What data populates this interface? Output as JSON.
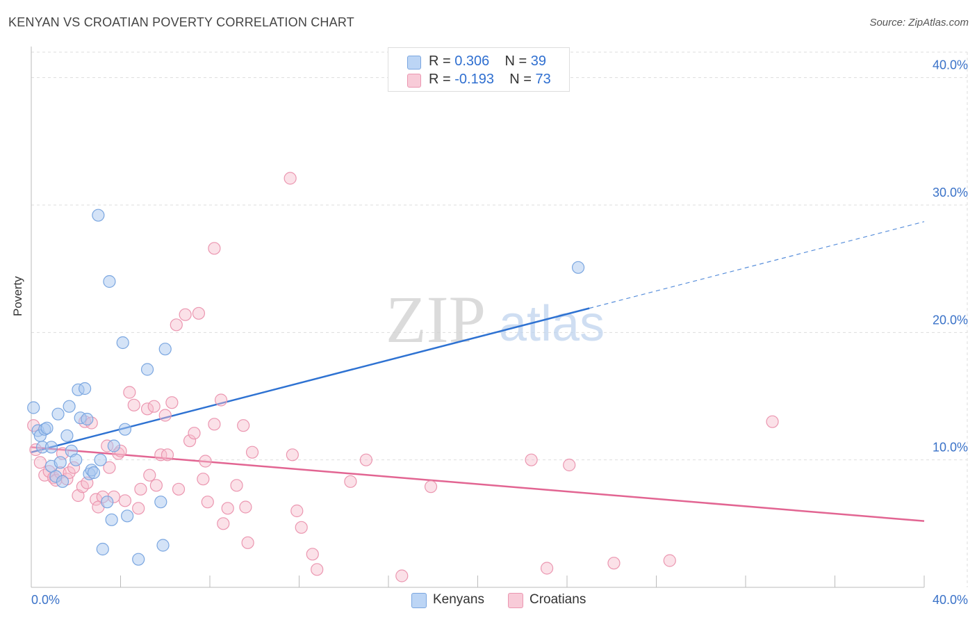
{
  "title": "KENYAN VS CROATIAN POVERTY CORRELATION CHART",
  "source": "Source: ZipAtlas.com",
  "watermark": {
    "zip": "ZIP",
    "atlas": "atlas"
  },
  "colors": {
    "kenyan_fill": "#a9c8f0",
    "kenyan_stroke": "#7aa6e0",
    "kenyan_line": "#2e72d2",
    "croatian_fill": "#f6bccd",
    "croatian_stroke": "#eb96b0",
    "croatian_line": "#e26592",
    "axis_label": "#3a72c8",
    "grid": "#dddddd"
  },
  "legend": {
    "rows": [
      {
        "r_label": "R =",
        "r_value": "0.306",
        "n_label": "N =",
        "n_value": "39"
      },
      {
        "r_label": "R =",
        "r_value": "-0.193",
        "n_label": "N =",
        "n_value": "73"
      }
    ]
  },
  "bottom_legend": [
    {
      "label": "Kenyans"
    },
    {
      "label": "Croatians"
    }
  ],
  "chart_data": {
    "type": "scatter",
    "title": "KENYAN VS CROATIAN POVERTY CORRELATION CHART",
    "xlabel": "",
    "ylabel": "Poverty",
    "xlim": [
      0,
      40
    ],
    "ylim": [
      0,
      42
    ],
    "x_tick_labels": [
      "0.0%",
      "40.0%"
    ],
    "y_ticks": [
      10,
      20,
      30,
      40
    ],
    "y_tick_labels": [
      "10.0%",
      "20.0%",
      "30.0%",
      "40.0%"
    ],
    "series": [
      {
        "name": "Kenyans",
        "r": 0.306,
        "n": 39,
        "trend": {
          "x0": 0,
          "y0": 10.6,
          "x1": 25,
          "y1": 21.9,
          "dash_to_x": 40,
          "dash_to_y": 28.7
        },
        "points": [
          [
            0.1,
            14.1
          ],
          [
            0.3,
            12.3
          ],
          [
            0.4,
            11.9
          ],
          [
            0.5,
            11.0
          ],
          [
            0.6,
            12.4
          ],
          [
            0.7,
            12.5
          ],
          [
            0.9,
            11.0
          ],
          [
            0.9,
            9.5
          ],
          [
            1.1,
            8.7
          ],
          [
            1.2,
            13.6
          ],
          [
            1.3,
            9.8
          ],
          [
            1.4,
            8.3
          ],
          [
            1.6,
            11.9
          ],
          [
            1.7,
            14.2
          ],
          [
            1.8,
            10.7
          ],
          [
            2.0,
            10.0
          ],
          [
            2.1,
            15.5
          ],
          [
            2.2,
            13.3
          ],
          [
            2.4,
            15.6
          ],
          [
            2.5,
            13.2
          ],
          [
            2.6,
            8.9
          ],
          [
            2.7,
            9.2
          ],
          [
            2.8,
            9.0
          ],
          [
            3.0,
            29.2
          ],
          [
            3.1,
            10.0
          ],
          [
            3.2,
            3.0
          ],
          [
            3.4,
            6.7
          ],
          [
            3.5,
            24.0
          ],
          [
            3.6,
            5.3
          ],
          [
            3.7,
            11.1
          ],
          [
            4.1,
            19.2
          ],
          [
            4.2,
            12.4
          ],
          [
            4.3,
            5.6
          ],
          [
            4.8,
            2.2
          ],
          [
            5.2,
            17.1
          ],
          [
            5.8,
            6.7
          ],
          [
            5.9,
            3.3
          ],
          [
            6.0,
            18.7
          ],
          [
            24.5,
            25.1
          ]
        ]
      },
      {
        "name": "Croatians",
        "r": -0.193,
        "n": 73,
        "trend": {
          "x0": 0,
          "y0": 11.0,
          "x1": 40,
          "y1": 5.2
        },
        "points": [
          [
            0.1,
            12.7
          ],
          [
            0.2,
            10.8
          ],
          [
            0.4,
            9.8
          ],
          [
            0.6,
            8.8
          ],
          [
            0.8,
            9.1
          ],
          [
            1.0,
            8.6
          ],
          [
            1.1,
            8.4
          ],
          [
            1.3,
            9.0
          ],
          [
            1.4,
            10.5
          ],
          [
            1.6,
            8.5
          ],
          [
            1.7,
            9.0
          ],
          [
            1.9,
            9.4
          ],
          [
            2.1,
            7.2
          ],
          [
            2.3,
            7.9
          ],
          [
            2.4,
            13.0
          ],
          [
            2.5,
            8.2
          ],
          [
            2.7,
            12.9
          ],
          [
            2.9,
            6.9
          ],
          [
            3.0,
            6.3
          ],
          [
            3.2,
            7.1
          ],
          [
            3.4,
            11.1
          ],
          [
            3.5,
            9.4
          ],
          [
            3.7,
            7.1
          ],
          [
            3.9,
            10.5
          ],
          [
            4.0,
            10.7
          ],
          [
            4.2,
            6.8
          ],
          [
            4.4,
            15.3
          ],
          [
            4.6,
            14.3
          ],
          [
            4.8,
            6.2
          ],
          [
            4.9,
            7.7
          ],
          [
            5.2,
            14.0
          ],
          [
            5.3,
            8.8
          ],
          [
            5.5,
            14.2
          ],
          [
            5.6,
            8.0
          ],
          [
            5.8,
            10.4
          ],
          [
            6.0,
            13.5
          ],
          [
            6.1,
            10.4
          ],
          [
            6.3,
            14.5
          ],
          [
            6.5,
            20.6
          ],
          [
            6.6,
            7.7
          ],
          [
            6.9,
            21.4
          ],
          [
            7.1,
            11.5
          ],
          [
            7.3,
            12.1
          ],
          [
            7.5,
            21.5
          ],
          [
            7.7,
            8.5
          ],
          [
            7.8,
            9.9
          ],
          [
            7.9,
            6.7
          ],
          [
            8.2,
            12.8
          ],
          [
            8.2,
            26.6
          ],
          [
            8.5,
            14.7
          ],
          [
            8.6,
            5.0
          ],
          [
            8.8,
            6.2
          ],
          [
            9.2,
            8.0
          ],
          [
            9.5,
            12.7
          ],
          [
            9.6,
            6.3
          ],
          [
            9.7,
            3.5
          ],
          [
            9.9,
            10.6
          ],
          [
            11.6,
            32.1
          ],
          [
            11.7,
            10.4
          ],
          [
            11.9,
            6.0
          ],
          [
            12.1,
            4.7
          ],
          [
            12.6,
            2.6
          ],
          [
            12.8,
            1.4
          ],
          [
            14.3,
            8.3
          ],
          [
            15.0,
            10.0
          ],
          [
            16.6,
            0.9
          ],
          [
            17.9,
            7.9
          ],
          [
            22.4,
            10.0
          ],
          [
            23.1,
            1.5
          ],
          [
            24.1,
            9.6
          ],
          [
            26.1,
            1.9
          ],
          [
            28.6,
            2.1
          ],
          [
            33.2,
            13.0
          ]
        ]
      }
    ]
  }
}
